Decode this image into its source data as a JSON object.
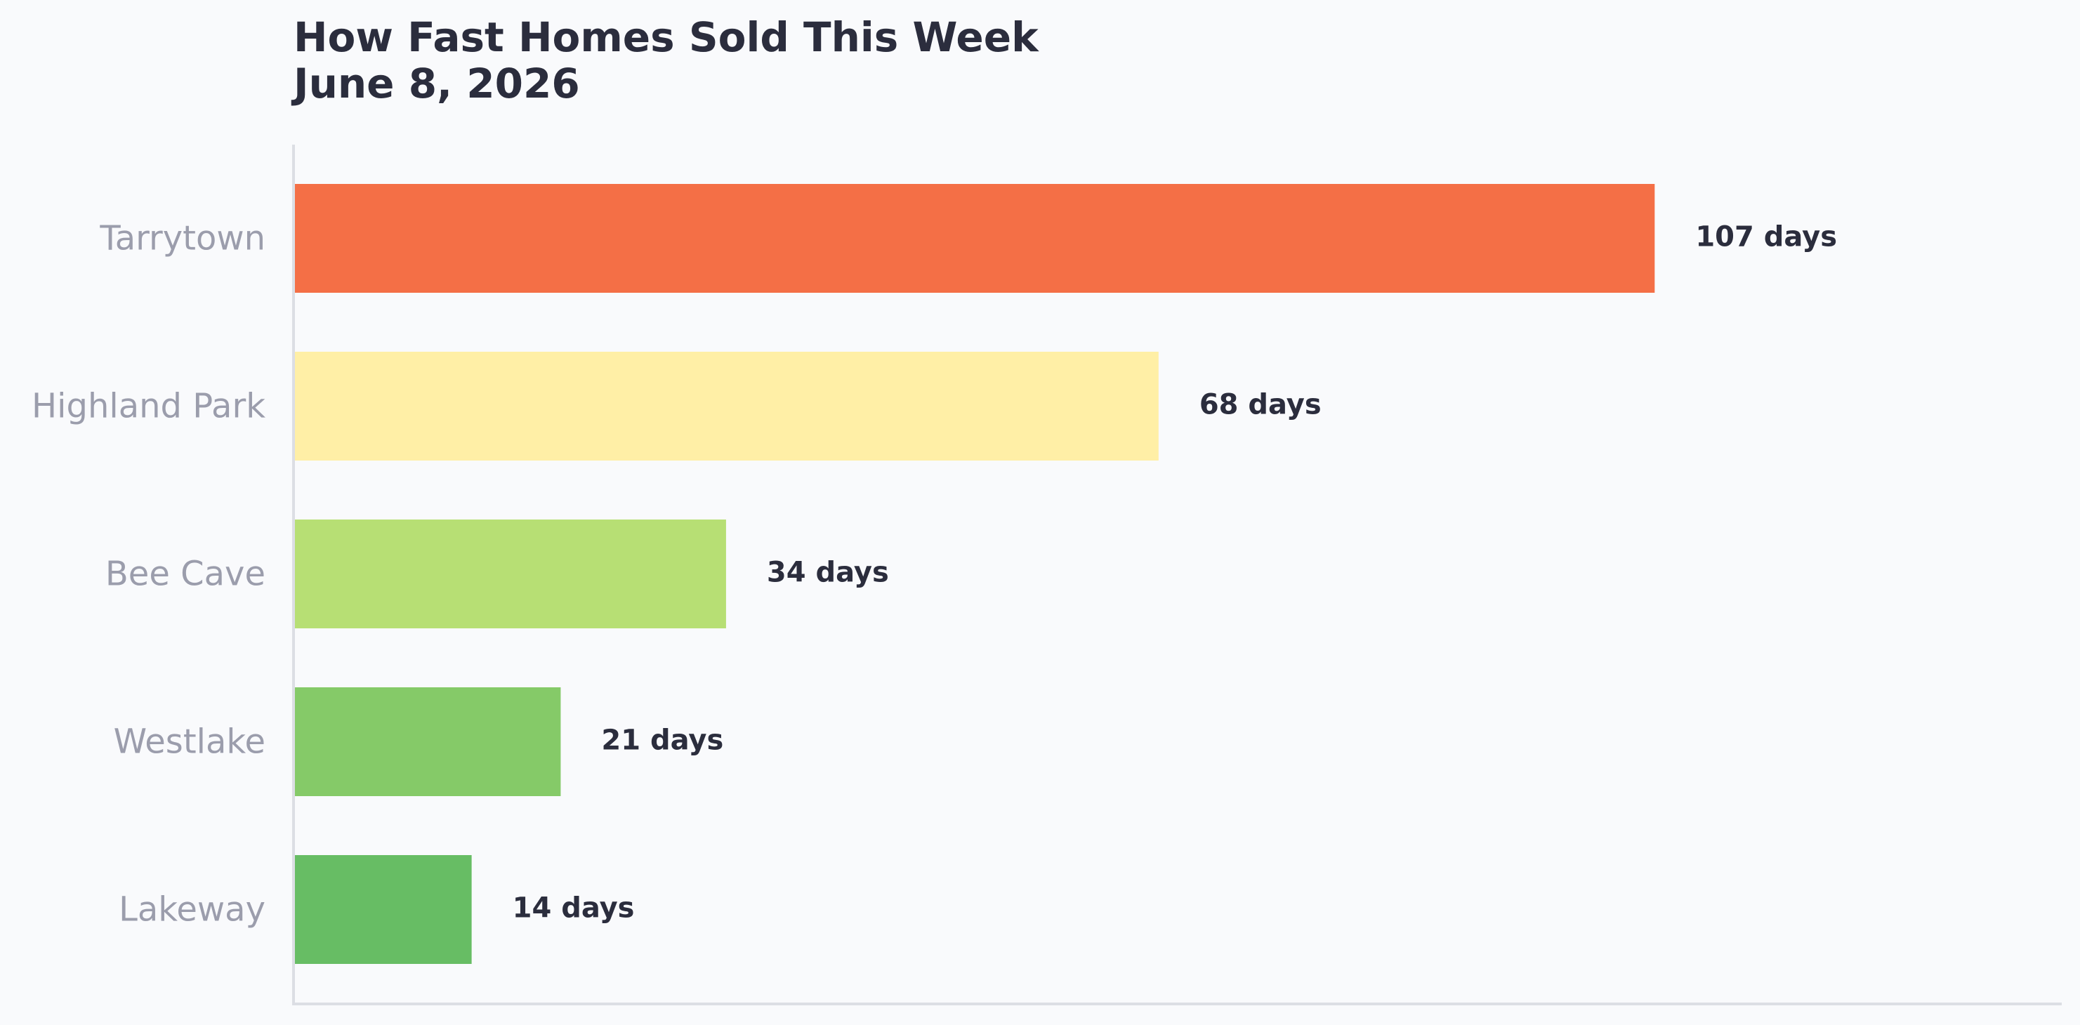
{
  "chart_data": {
    "type": "bar",
    "orientation": "horizontal",
    "title": "How Fast Homes Sold This Week\nJune 8, 2026",
    "xlabel": "",
    "ylabel": "",
    "categories": [
      "Tarrytown",
      "Highland Park",
      "Bee Cave",
      "Westlake",
      "Lakeway"
    ],
    "values": [
      107,
      68,
      34,
      21,
      14
    ],
    "value_labels": [
      "107 days",
      "68 days",
      "34 days",
      "21 days",
      "14 days"
    ],
    "colors": [
      "#f46f46",
      "#ffefa6",
      "#b7df74",
      "#85ca68",
      "#67bd64"
    ],
    "xlim": [
      0,
      139
    ],
    "grid": false,
    "legend": "none"
  }
}
